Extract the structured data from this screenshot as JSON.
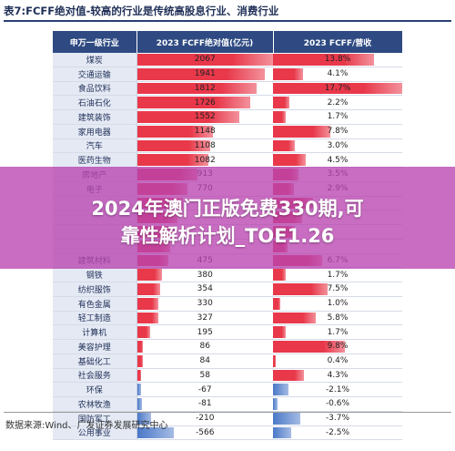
{
  "header": {
    "title": "表7:FCFF绝对值-较高的行业是传统高股息行业、消费行业"
  },
  "table": {
    "columns": [
      "申万一级行业",
      "2023 FCFF绝对值(亿元)",
      "2023 FCFF/营收"
    ],
    "rows": [
      {
        "industry": "煤炭",
        "fcff": "2067",
        "ratio": "13.8%",
        "fcff_num": 2067,
        "ratio_num": 13.8
      },
      {
        "industry": "交通运输",
        "fcff": "1941",
        "ratio": "4.1%",
        "fcff_num": 1941,
        "ratio_num": 4.1
      },
      {
        "industry": "食品饮料",
        "fcff": "1812",
        "ratio": "17.7%",
        "fcff_num": 1812,
        "ratio_num": 17.7
      },
      {
        "industry": "石油石化",
        "fcff": "1726",
        "ratio": "2.2%",
        "fcff_num": 1726,
        "ratio_num": 2.2
      },
      {
        "industry": "建筑装饰",
        "fcff": "1552",
        "ratio": "1.7%",
        "fcff_num": 1552,
        "ratio_num": 1.7
      },
      {
        "industry": "家用电器",
        "fcff": "1148",
        "ratio": "7.8%",
        "fcff_num": 1148,
        "ratio_num": 7.8
      },
      {
        "industry": "汽车",
        "fcff": "1108",
        "ratio": "3.0%",
        "fcff_num": 1108,
        "ratio_num": 3.0
      },
      {
        "industry": "医药生物",
        "fcff": "1082",
        "ratio": "4.5%",
        "fcff_num": 1082,
        "ratio_num": 4.5
      },
      {
        "industry": "房地产",
        "fcff": "913",
        "ratio": "3.5%",
        "fcff_num": 913,
        "ratio_num": 3.5
      },
      {
        "industry": "电子",
        "fcff": "770",
        "ratio": "2.9%",
        "fcff_num": 770,
        "ratio_num": 2.9
      },
      {
        "industry": "",
        "fcff": "",
        "ratio": "",
        "fcff_num": 700,
        "ratio_num": 5.5
      },
      {
        "industry": "",
        "fcff": "",
        "ratio": "",
        "fcff_num": 620,
        "ratio_num": 4.0
      },
      {
        "industry": "",
        "fcff": "",
        "ratio": "",
        "fcff_num": 560,
        "ratio_num": 3.0
      },
      {
        "industry": "",
        "fcff": "",
        "ratio": "",
        "fcff_num": 510,
        "ratio_num": 2.0
      },
      {
        "industry": "建筑材料",
        "fcff": "475",
        "ratio": "6.7%",
        "fcff_num": 475,
        "ratio_num": 6.7
      },
      {
        "industry": "钢铁",
        "fcff": "380",
        "ratio": "1.7%",
        "fcff_num": 380,
        "ratio_num": 1.7
      },
      {
        "industry": "纺织服饰",
        "fcff": "354",
        "ratio": "7.5%",
        "fcff_num": 354,
        "ratio_num": 7.5
      },
      {
        "industry": "有色金属",
        "fcff": "330",
        "ratio": "1.0%",
        "fcff_num": 330,
        "ratio_num": 1.0
      },
      {
        "industry": "轻工制造",
        "fcff": "327",
        "ratio": "5.8%",
        "fcff_num": 327,
        "ratio_num": 5.8
      },
      {
        "industry": "计算机",
        "fcff": "195",
        "ratio": "1.7%",
        "fcff_num": 195,
        "ratio_num": 1.7
      },
      {
        "industry": "美容护理",
        "fcff": "86",
        "ratio": "9.8%",
        "fcff_num": 86,
        "ratio_num": 9.8
      },
      {
        "industry": "基础化工",
        "fcff": "84",
        "ratio": "0.4%",
        "fcff_num": 84,
        "ratio_num": 0.4
      },
      {
        "industry": "社会服务",
        "fcff": "58",
        "ratio": "4.3%",
        "fcff_num": 58,
        "ratio_num": 4.3
      },
      {
        "industry": "环保",
        "fcff": "-67",
        "ratio": "-2.1%",
        "fcff_num": -67,
        "ratio_num": -2.1
      },
      {
        "industry": "农林牧渔",
        "fcff": "-81",
        "ratio": "-0.6%",
        "fcff_num": -81,
        "ratio_num": -0.6
      },
      {
        "industry": "国防军工",
        "fcff": "-210",
        "ratio": "-3.7%",
        "fcff_num": -210,
        "ratio_num": -3.7
      },
      {
        "industry": "公用事业",
        "fcff": "-566",
        "ratio": "-2.5%",
        "fcff_num": -566,
        "ratio_num": -2.5
      }
    ]
  },
  "overlay": {
    "line1": "2024年澳门正版免费330期,可",
    "line2": "靠性解析计划_TOE1.26"
  },
  "source": "数据来源:Wind、广发证券发展研究中心",
  "colors": {
    "header_bg": "#2f4a82",
    "industry_bg": "#e4e9f4",
    "bar_positive": "#e8384a",
    "bar_negative": "#4a78c8",
    "overlay": "#b844b0"
  }
}
